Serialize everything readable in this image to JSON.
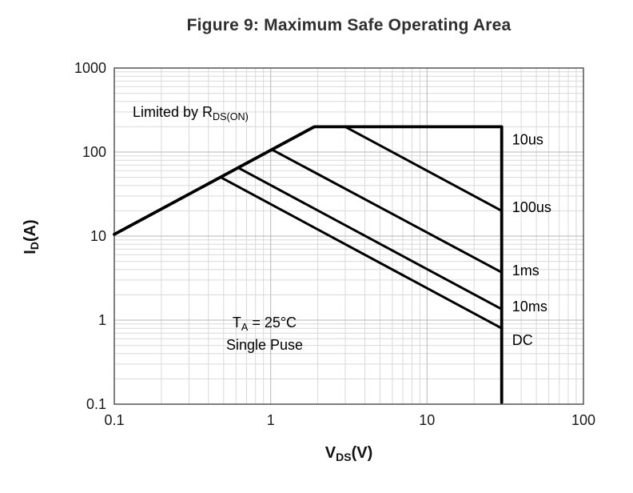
{
  "chart_data": {
    "type": "line",
    "title": "Figure 9: Maximum Safe Operating Area",
    "x_scale": "log",
    "y_scale": "log",
    "xlim": [
      0.1,
      100
    ],
    "ylim": [
      0.1,
      1000
    ],
    "x_ticks": [
      0.1,
      1,
      10,
      100
    ],
    "y_ticks": [
      0.1,
      1,
      10,
      100,
      1000
    ],
    "grid": "log major and minor gridlines, light gray",
    "background": "#ffffff",
    "line_color": "#000000",
    "xlabel": {
      "pre": "V",
      "sub": "DS",
      "post": "(V)"
    },
    "ylabel": {
      "pre": "I",
      "sub": "D",
      "post": "(A)"
    },
    "series": [
      {
        "name": "10us",
        "label": "10us",
        "points": [
          [
            0.1,
            10.5
          ],
          [
            1.9,
            200
          ],
          [
            30,
            200
          ],
          [
            30,
            0.105
          ]
        ],
        "label_pos": [
          35,
          140
        ],
        "width": 3.8
      },
      {
        "name": "100us",
        "label": "100us",
        "points": [
          [
            3,
            200
          ],
          [
            30,
            20
          ]
        ],
        "label_pos": [
          35,
          22
        ],
        "width": 3
      },
      {
        "name": "1ms",
        "label": "1ms",
        "points": [
          [
            1.02,
            107
          ],
          [
            30,
            3.7
          ]
        ],
        "label_pos": [
          35,
          3.9
        ],
        "width": 3
      },
      {
        "name": "10ms",
        "label": "10ms",
        "points": [
          [
            0.62,
            65
          ],
          [
            30,
            1.35
          ]
        ],
        "label_pos": [
          35,
          1.45
        ],
        "width": 3
      },
      {
        "name": "DC",
        "label": "DC",
        "points": [
          [
            0.48,
            50
          ],
          [
            30,
            0.8
          ]
        ],
        "label_pos": [
          35,
          0.58
        ],
        "width": 3
      }
    ],
    "annotations": [
      {
        "id": "rdson-limit",
        "pre": "Limited by R",
        "sub": "DS(ON)",
        "post": ""
      },
      {
        "id": "conditions",
        "line1_pre": "T",
        "line1_sub": "A",
        "line1_post": " = 25°C",
        "line2": "Single Puse"
      }
    ]
  }
}
